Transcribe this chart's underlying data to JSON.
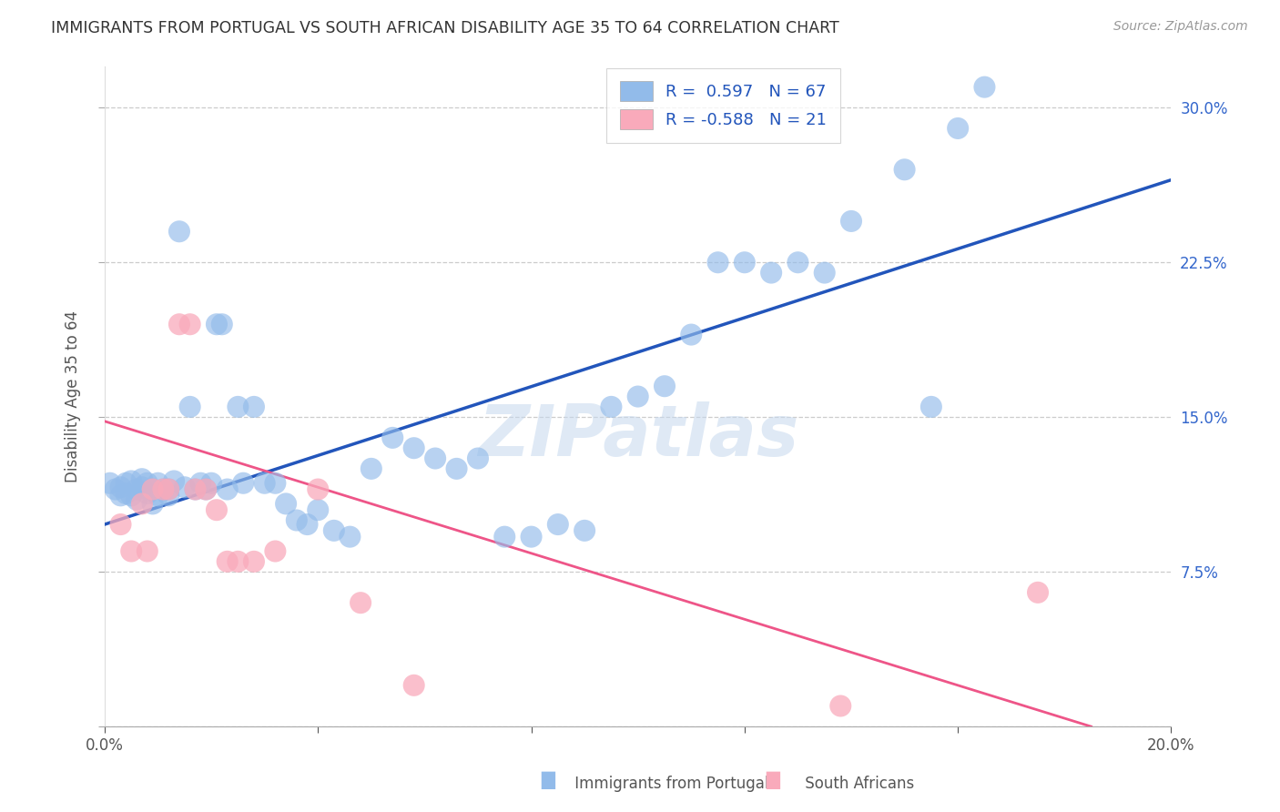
{
  "title": "IMMIGRANTS FROM PORTUGAL VS SOUTH AFRICAN DISABILITY AGE 35 TO 64 CORRELATION CHART",
  "source": "Source: ZipAtlas.com",
  "ylabel": "Disability Age 35 to 64",
  "xmin": 0.0,
  "xmax": 0.2,
  "ymin": 0.0,
  "ymax": 0.32,
  "xticks": [
    0.0,
    0.04,
    0.08,
    0.12,
    0.16,
    0.2
  ],
  "xticklabels": [
    "0.0%",
    "",
    "",
    "",
    "",
    "20.0%"
  ],
  "yticks": [
    0.0,
    0.075,
    0.15,
    0.225,
    0.3
  ],
  "yticklabels_right": [
    "",
    "7.5%",
    "15.0%",
    "22.5%",
    "30.0%"
  ],
  "legend_r_blue": "R =  0.597",
  "legend_n_blue": "N = 67",
  "legend_r_pink": "R = -0.588",
  "legend_n_pink": "N = 21",
  "blue_dot_color": "#92BBEA",
  "pink_dot_color": "#F9AABB",
  "line_blue_color": "#2255BB",
  "line_pink_color": "#EE5588",
  "watermark_text": "ZIPatlas",
  "blue_x": [
    0.001,
    0.002,
    0.003,
    0.003,
    0.004,
    0.004,
    0.005,
    0.005,
    0.006,
    0.006,
    0.007,
    0.007,
    0.008,
    0.008,
    0.009,
    0.009,
    0.01,
    0.01,
    0.011,
    0.012,
    0.012,
    0.013,
    0.014,
    0.015,
    0.016,
    0.017,
    0.018,
    0.019,
    0.02,
    0.021,
    0.022,
    0.023,
    0.025,
    0.026,
    0.028,
    0.03,
    0.032,
    0.034,
    0.036,
    0.038,
    0.04,
    0.043,
    0.046,
    0.05,
    0.054,
    0.058,
    0.062,
    0.066,
    0.07,
    0.075,
    0.08,
    0.085,
    0.09,
    0.095,
    0.1,
    0.105,
    0.11,
    0.115,
    0.12,
    0.125,
    0.13,
    0.135,
    0.14,
    0.15,
    0.155,
    0.16,
    0.165
  ],
  "blue_y": [
    0.118,
    0.115,
    0.112,
    0.116,
    0.113,
    0.118,
    0.112,
    0.119,
    0.115,
    0.11,
    0.116,
    0.12,
    0.113,
    0.118,
    0.115,
    0.108,
    0.112,
    0.118,
    0.115,
    0.112,
    0.115,
    0.119,
    0.24,
    0.116,
    0.155,
    0.115,
    0.118,
    0.115,
    0.118,
    0.195,
    0.195,
    0.115,
    0.155,
    0.118,
    0.155,
    0.118,
    0.118,
    0.108,
    0.1,
    0.098,
    0.105,
    0.095,
    0.092,
    0.125,
    0.14,
    0.135,
    0.13,
    0.125,
    0.13,
    0.092,
    0.092,
    0.098,
    0.095,
    0.155,
    0.16,
    0.165,
    0.19,
    0.225,
    0.225,
    0.22,
    0.225,
    0.22,
    0.245,
    0.27,
    0.155,
    0.29,
    0.31
  ],
  "pink_x": [
    0.003,
    0.005,
    0.007,
    0.008,
    0.009,
    0.011,
    0.012,
    0.014,
    0.016,
    0.017,
    0.019,
    0.021,
    0.023,
    0.025,
    0.028,
    0.032,
    0.04,
    0.048,
    0.058,
    0.138,
    0.175
  ],
  "pink_y": [
    0.098,
    0.085,
    0.108,
    0.085,
    0.115,
    0.115,
    0.115,
    0.195,
    0.195,
    0.115,
    0.115,
    0.105,
    0.08,
    0.08,
    0.08,
    0.085,
    0.115,
    0.06,
    0.02,
    0.01,
    0.065
  ],
  "blue_line_x": [
    0.0,
    0.2
  ],
  "blue_line_y": [
    0.098,
    0.265
  ],
  "pink_line_x": [
    0.0,
    0.185
  ],
  "pink_line_y": [
    0.148,
    0.0
  ]
}
